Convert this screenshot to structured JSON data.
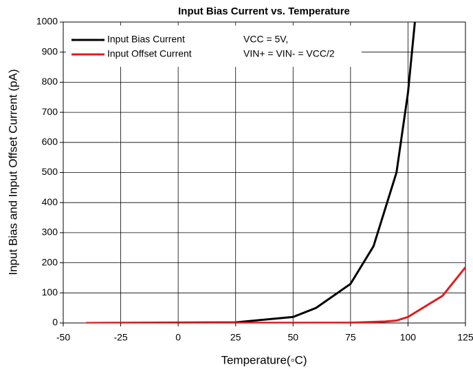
{
  "chart_data": {
    "type": "line",
    "title": "Input Bias Current vs. Temperature",
    "x_label": "Temperature(◦C)",
    "y_label": "Input Bias and Input Offset Current (pA)",
    "annotations": [
      "VCC = 5V,",
      "VIN+ = VIN- = VCC/2"
    ],
    "series": [
      {
        "name": "Input Bias Current",
        "color": "#000000",
        "x": [
          -40,
          25,
          50,
          60,
          75,
          85,
          95,
          100,
          103
        ],
        "values": [
          0,
          2,
          20,
          50,
          130,
          255,
          500,
          765,
          1000
        ]
      },
      {
        "name": "Input Offset Current",
        "color": "#e31a1c",
        "x": [
          -40,
          75,
          90,
          95,
          100,
          115,
          125
        ],
        "values": [
          0,
          1,
          5,
          8,
          20,
          90,
          185
        ]
      }
    ],
    "xlim": [
      -50,
      125
    ],
    "xticks": [
      -50,
      -25,
      0,
      25,
      50,
      75,
      100,
      125
    ],
    "ylim": [
      0,
      1000
    ],
    "yticks": [
      0,
      100,
      200,
      300,
      400,
      500,
      600,
      700,
      800,
      900,
      1000
    ],
    "grid": true,
    "legend": "upper left"
  }
}
